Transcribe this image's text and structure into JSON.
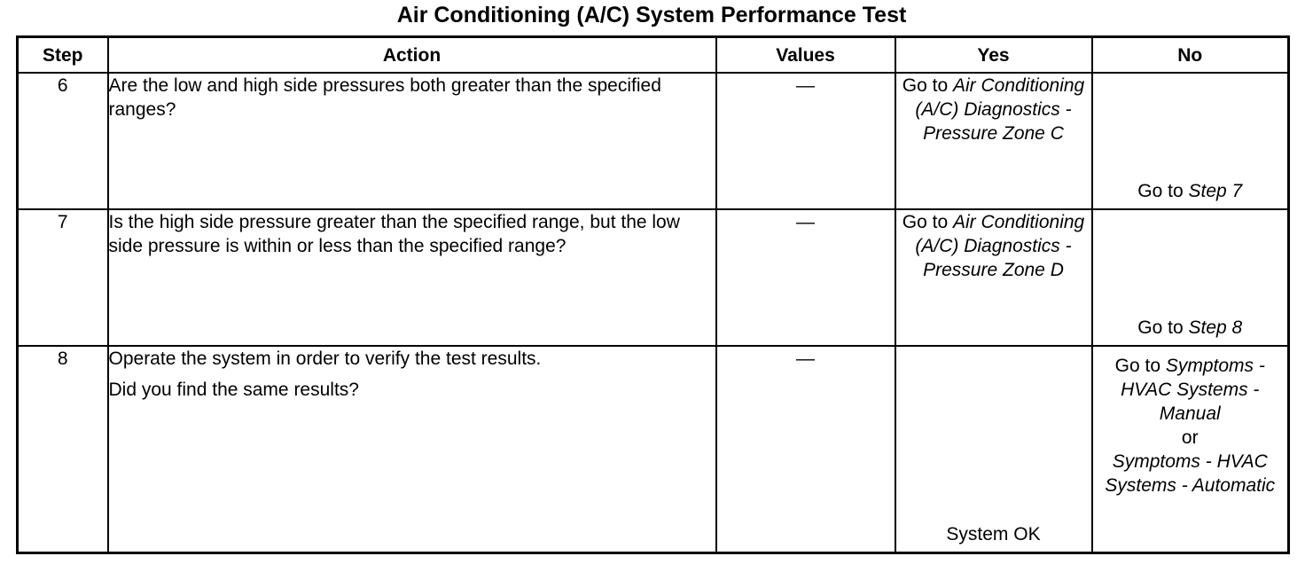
{
  "title": "Air Conditioning (A/C) System Performance Test",
  "headers": {
    "step": "Step",
    "action": "Action",
    "values": "Values",
    "yes": "Yes",
    "no": "No"
  },
  "rows": [
    {
      "step": "6",
      "action_lines": [
        "Are the low and high side pressures both greater than the specified ranges?"
      ],
      "values": "—",
      "yes": {
        "prefix": "Go to ",
        "link": "Air Conditioning (A/C) Diagnostics - Pressure Zone C"
      },
      "no": {
        "prefix": "Go to ",
        "link": "Step 7"
      }
    },
    {
      "step": "7",
      "action_lines": [
        "Is the high side pressure greater than the specified range, but the low side pressure is within or less than the specified range?"
      ],
      "values": "—",
      "yes": {
        "prefix": "Go to ",
        "link": "Air Conditioning (A/C) Diagnostics - Pressure Zone D"
      },
      "no": {
        "prefix": "Go to ",
        "link": "Step 8"
      }
    },
    {
      "step": "8",
      "action_lines": [
        "Operate the system in order to verify the test results.",
        "Did you find the same results?"
      ],
      "values": "—",
      "yes": {
        "text": "System OK"
      },
      "no": {
        "prefix": "Go to ",
        "link1": "Symptoms - HVAC Systems - Manual",
        "or": "or",
        "link2": "Symptoms - HVAC Systems - Automatic"
      }
    }
  ]
}
